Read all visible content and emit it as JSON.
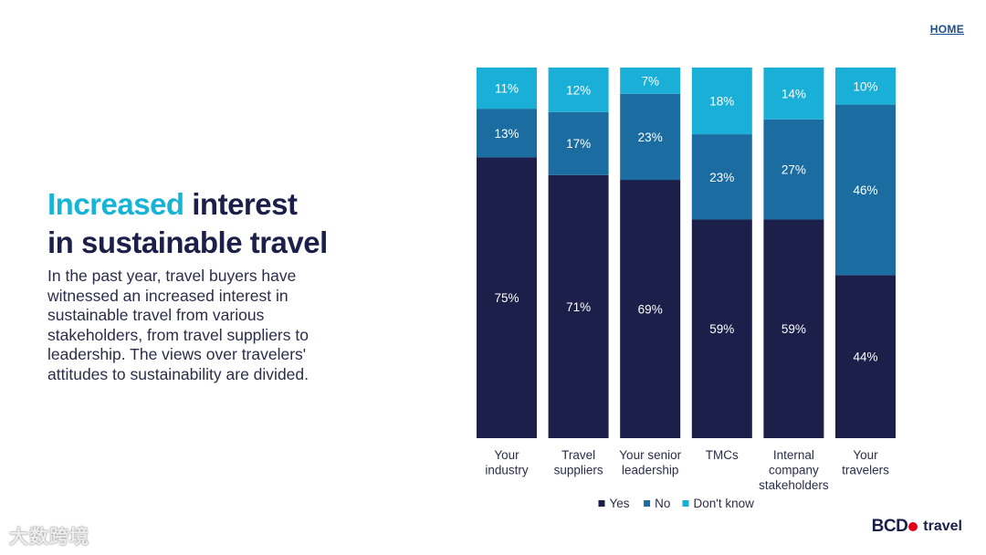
{
  "nav": {
    "home_label": "HOME"
  },
  "headline": {
    "accent": "Increased",
    "rest_line1": "interest",
    "line2": "in sustainable travel"
  },
  "body_text": "In the past year, travel buyers have witnessed an increased interest in sustainable travel from various stakeholders, from travel suppliers to leadership. The views over travelers' attitudes to sustainability are divided.",
  "chart_data": {
    "type": "bar",
    "stacked": true,
    "percent": true,
    "categories": [
      [
        "Your",
        "industry"
      ],
      [
        "Travel",
        "suppliers"
      ],
      [
        "Your senior",
        "leadership"
      ],
      [
        "TMCs"
      ],
      [
        "Internal",
        "company",
        "stakeholders"
      ],
      [
        "Your",
        "travelers"
      ]
    ],
    "series": [
      {
        "name": "Yes",
        "color": "#1b1f4a",
        "values": [
          75,
          71,
          69,
          59,
          59,
          44
        ]
      },
      {
        "name": "No",
        "color": "#1b6da1",
        "values": [
          13,
          17,
          23,
          23,
          27,
          46
        ]
      },
      {
        "name": "Don't know",
        "color": "#1aafd6",
        "values": [
          11,
          12,
          7,
          18,
          14,
          10
        ]
      }
    ],
    "legend_position": "bottom",
    "grid": false
  },
  "logo": {
    "mark": "BCD",
    "word": "travel"
  },
  "watermark": "大数跨境"
}
